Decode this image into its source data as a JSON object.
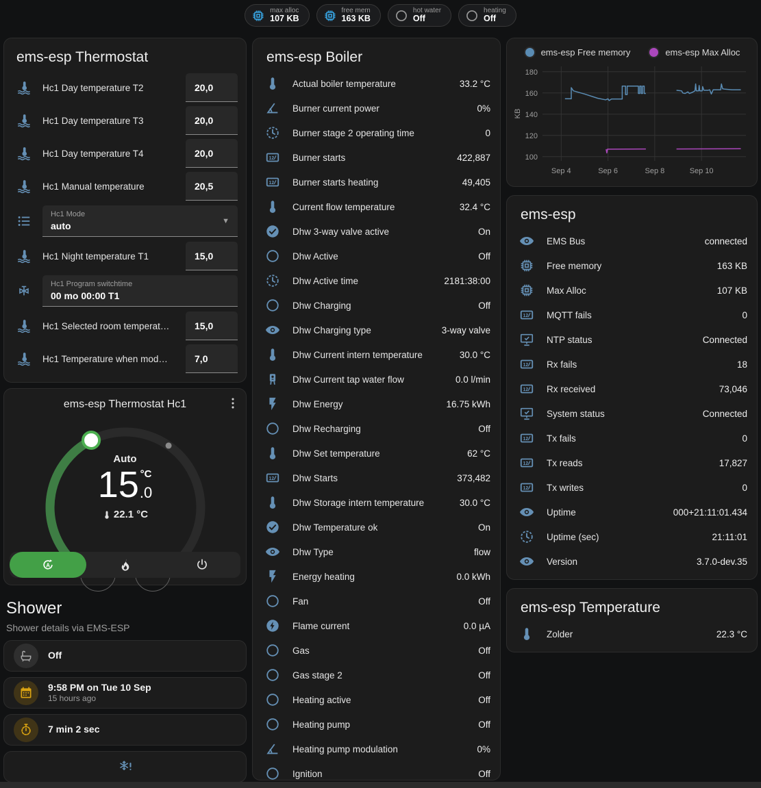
{
  "badges": [
    {
      "label": "max alloc",
      "value": "107 KB",
      "icon": "chip",
      "color": "blue"
    },
    {
      "label": "free mem",
      "value": "163 KB",
      "icon": "chip",
      "color": "blue"
    },
    {
      "label": "hot water",
      "value": "Off",
      "icon": "circle-outline",
      "color": "gray"
    },
    {
      "label": "heating",
      "value": "Off",
      "icon": "circle-outline",
      "color": "gray"
    }
  ],
  "thermostat_card": {
    "title": "ems-esp Thermostat",
    "rows": [
      {
        "type": "number",
        "icon": "thermometer-water",
        "label": "Hc1 Day temperature T2",
        "value": "20,0"
      },
      {
        "type": "number",
        "icon": "thermometer-water",
        "label": "Hc1 Day temperature T3",
        "value": "20,0"
      },
      {
        "type": "number",
        "icon": "thermometer-water",
        "label": "Hc1 Day temperature T4",
        "value": "20,0"
      },
      {
        "type": "number",
        "icon": "thermometer-water",
        "label": "Hc1 Manual temperature",
        "value": "20,5"
      },
      {
        "type": "select",
        "icon": "format-list",
        "label": "Hc1 Mode",
        "value": "auto"
      },
      {
        "type": "number",
        "icon": "thermometer-water",
        "label": "Hc1 Night temperature T1",
        "value": "15,0"
      },
      {
        "type": "text",
        "icon": "valve",
        "label": "Hc1 Program switchtime",
        "value": "00 mo 00:00 T1"
      },
      {
        "type": "number",
        "icon": "thermometer-water",
        "label": "Hc1 Selected room temperat…",
        "value": "15,0"
      },
      {
        "type": "number",
        "icon": "thermometer-water",
        "label": "Hc1 Temperature when mod…",
        "value": "7,0"
      }
    ]
  },
  "dial_card": {
    "title": "ems-esp Thermostat Hc1",
    "mode": "Auto",
    "target_whole": "15",
    "target_decimal": ".0",
    "unit": "°C",
    "current": "22.1 °C",
    "accent_green": "#43a047",
    "arc_green": "#3e7d44",
    "modes": [
      {
        "icon": "auto",
        "selected": true
      },
      {
        "icon": "fire",
        "selected": false
      },
      {
        "icon": "power",
        "selected": false
      }
    ]
  },
  "shower": {
    "title": "Shower",
    "subtitle": "Shower details via EMS-ESP",
    "items": [
      {
        "icon": "bathtub",
        "color": "gray",
        "primary": "Off",
        "secondary": ""
      },
      {
        "icon": "calendar",
        "color": "amber",
        "primary": "9:58 PM on Tue 10 Sep",
        "secondary": "15 hours ago"
      },
      {
        "icon": "timer",
        "color": "amber",
        "primary": "7 min 2 sec",
        "secondary": ""
      },
      {
        "icon": "snowflake-alert",
        "color": "plain",
        "primary": "",
        "secondary": ""
      }
    ]
  },
  "boiler_card": {
    "title": "ems-esp Boiler",
    "rows": [
      {
        "icon": "thermometer",
        "label": "Actual boiler temperature",
        "value": "33.2 °C"
      },
      {
        "icon": "angle-acute",
        "label": "Burner current power",
        "value": "0%"
      },
      {
        "icon": "clock-dashed",
        "label": "Burner stage 2 operating time",
        "value": "0"
      },
      {
        "icon": "counter",
        "label": "Burner starts",
        "value": "422,887"
      },
      {
        "icon": "counter",
        "label": "Burner starts heating",
        "value": "49,405"
      },
      {
        "icon": "thermometer",
        "label": "Current flow temperature",
        "value": "32.4 °C"
      },
      {
        "icon": "check-circle",
        "label": "Dhw 3-way valve active",
        "value": "On"
      },
      {
        "icon": "circle-outline",
        "label": "Dhw Active",
        "value": "Off"
      },
      {
        "icon": "clock-dashed",
        "label": "Dhw Active time",
        "value": "2181:38:00"
      },
      {
        "icon": "circle-outline",
        "label": "Dhw Charging",
        "value": "Off"
      },
      {
        "icon": "eye",
        "label": "Dhw Charging type",
        "value": "3-way valve"
      },
      {
        "icon": "thermometer",
        "label": "Dhw Current intern temperature",
        "value": "30.0 °C"
      },
      {
        "icon": "water-heater",
        "label": "Dhw Current tap water flow",
        "value": "0.0 l/min"
      },
      {
        "icon": "flash",
        "label": "Dhw Energy",
        "value": "16.75 kWh"
      },
      {
        "icon": "circle-outline",
        "label": "Dhw Recharging",
        "value": "Off"
      },
      {
        "icon": "thermometer",
        "label": "Dhw Set temperature",
        "value": "62 °C"
      },
      {
        "icon": "counter",
        "label": "Dhw Starts",
        "value": "373,482"
      },
      {
        "icon": "thermometer",
        "label": "Dhw Storage intern temperature",
        "value": "30.0 °C"
      },
      {
        "icon": "check-circle",
        "label": "Dhw Temperature ok",
        "value": "On"
      },
      {
        "icon": "eye",
        "label": "Dhw Type",
        "value": "flow"
      },
      {
        "icon": "flash",
        "label": "Energy heating",
        "value": "0.0 kWh"
      },
      {
        "icon": "circle-outline",
        "label": "Fan",
        "value": "Off"
      },
      {
        "icon": "flash-circle",
        "label": "Flame current",
        "value": "0.0 µA"
      },
      {
        "icon": "circle-outline",
        "label": "Gas",
        "value": "Off"
      },
      {
        "icon": "circle-outline",
        "label": "Gas stage 2",
        "value": "Off"
      },
      {
        "icon": "circle-outline",
        "label": "Heating active",
        "value": "Off"
      },
      {
        "icon": "circle-outline",
        "label": "Heating pump",
        "value": "Off"
      },
      {
        "icon": "angle-acute",
        "label": "Heating pump modulation",
        "value": "0%"
      },
      {
        "icon": "circle-outline",
        "label": "Ignition",
        "value": "Off"
      }
    ]
  },
  "status_card": {
    "title": "ems-esp",
    "rows": [
      {
        "icon": "eye",
        "label": "EMS Bus",
        "value": "connected"
      },
      {
        "icon": "chip",
        "label": "Free memory",
        "value": "163 KB"
      },
      {
        "icon": "chip",
        "label": "Max Alloc",
        "value": "107 KB"
      },
      {
        "icon": "counter",
        "label": "MQTT fails",
        "value": "0"
      },
      {
        "icon": "monitor-check",
        "label": "NTP status",
        "value": "Connected"
      },
      {
        "icon": "counter",
        "label": "Rx fails",
        "value": "18"
      },
      {
        "icon": "counter",
        "label": "Rx received",
        "value": "73,046"
      },
      {
        "icon": "monitor-check",
        "label": "System status",
        "value": "Connected"
      },
      {
        "icon": "counter",
        "label": "Tx fails",
        "value": "0"
      },
      {
        "icon": "counter",
        "label": "Tx reads",
        "value": "17,827"
      },
      {
        "icon": "counter",
        "label": "Tx writes",
        "value": "0"
      },
      {
        "icon": "eye",
        "label": "Uptime",
        "value": "000+21:11:01.434"
      },
      {
        "icon": "clock-dashed",
        "label": "Uptime (sec)",
        "value": "21:11:01"
      },
      {
        "icon": "eye",
        "label": "Version",
        "value": "3.7.0-dev.35"
      }
    ]
  },
  "temperature_card": {
    "title": "ems-esp Temperature",
    "rows": [
      {
        "icon": "thermometer",
        "label": "Zolder",
        "value": "22.3 °C"
      }
    ]
  },
  "chart_data": {
    "type": "line",
    "title": "",
    "xlabel": "",
    "ylabel": "KB",
    "grid": true,
    "legend_position": "top",
    "y_ticks": [
      100,
      120,
      140,
      160,
      180
    ],
    "x_ticks": [
      {
        "day": 4,
        "label": "Sep 4"
      },
      {
        "day": 6,
        "label": "Sep 6"
      },
      {
        "day": 8,
        "label": "Sep 8"
      },
      {
        "day": 10,
        "label": "Sep 10"
      }
    ],
    "x_range": [
      3.2,
      11.9
    ],
    "y_range": [
      96,
      185
    ],
    "series": [
      {
        "name": "ems-esp Free memory",
        "color": "#5a8cb4",
        "segments": [
          [
            [
              4.16,
              154.5
            ],
            [
              4.43,
              154.5
            ],
            [
              4.43,
              165
            ],
            [
              4.52,
              162
            ],
            [
              5.0,
              159
            ],
            [
              5.56,
              155
            ],
            [
              5.9,
              153.5
            ],
            [
              6.0,
              154.5
            ],
            [
              6.05,
              152.8
            ],
            [
              6.15,
              154.3
            ],
            [
              6.61,
              154.3
            ],
            [
              6.61,
              166.5
            ],
            [
              6.75,
              166.5
            ],
            [
              6.75,
              158.5
            ],
            [
              6.82,
              158.5
            ],
            [
              6.82,
              166.5
            ],
            [
              7.3,
              166.5
            ],
            [
              7.3,
              159.5
            ],
            [
              7.36,
              159.5
            ],
            [
              7.36,
              166.5
            ],
            [
              7.42,
              166.5
            ],
            [
              7.42,
              159.5
            ],
            [
              7.48,
              159.5
            ],
            [
              7.48,
              166.5
            ],
            [
              7.55,
              166.5
            ],
            [
              7.55,
              159.5
            ],
            [
              7.62,
              159.5
            ]
          ],
          [
            [
              8.93,
              162.5
            ],
            [
              9.15,
              162
            ],
            [
              9.2,
              160
            ],
            [
              9.3,
              159.5
            ],
            [
              9.42,
              161
            ],
            [
              9.48,
              159.5
            ],
            [
              9.6,
              160.5
            ],
            [
              9.72,
              162
            ],
            [
              9.75,
              168.5
            ],
            [
              9.78,
              162
            ],
            [
              9.88,
              162
            ],
            [
              9.9,
              167
            ],
            [
              9.93,
              162
            ],
            [
              10.03,
              162
            ],
            [
              10.05,
              166
            ],
            [
              10.1,
              162.5
            ],
            [
              10.28,
              162.5
            ],
            [
              10.35,
              163
            ],
            [
              10.42,
              159
            ],
            [
              10.5,
              163
            ],
            [
              10.82,
              163
            ],
            [
              10.85,
              168.5
            ],
            [
              10.9,
              164
            ],
            [
              11.0,
              163.5
            ],
            [
              11.3,
              163
            ],
            [
              11.68,
              163
            ]
          ]
        ]
      },
      {
        "name": "ems-esp Max Alloc",
        "color": "#ab47bc",
        "segments": [
          [
            [
              5.92,
              107
            ],
            [
              5.95,
              103.5
            ],
            [
              5.98,
              107
            ],
            [
              7.62,
              107.2
            ]
          ],
          [
            [
              8.93,
              107.2
            ],
            [
              11.68,
              107.4
            ]
          ]
        ]
      }
    ]
  }
}
